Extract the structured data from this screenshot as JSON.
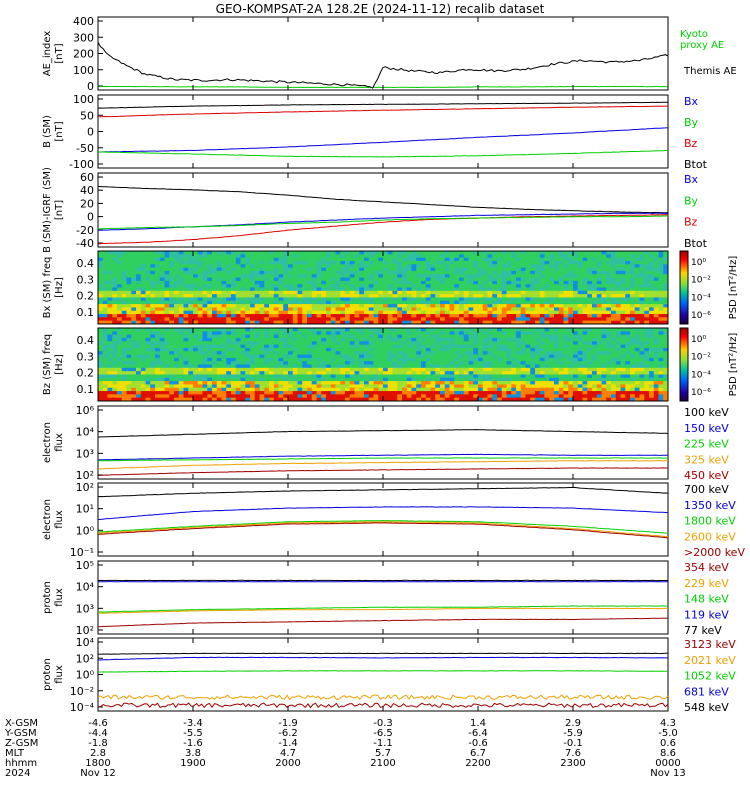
{
  "title": "GEO-KOMPSAT-2A 128.2E (2024-11-12) recalib dataset",
  "colors": {
    "black": "#000000",
    "red": "#e00000",
    "blue": "#0000e0",
    "green": "#00d000",
    "orange": "#f0a000",
    "darkred": "#a00000"
  },
  "chart_data": [
    {
      "type": "line",
      "ylabel": "AE_index [nT]",
      "yticks": [
        "400",
        "300",
        "200",
        "100",
        "0"
      ],
      "ylim": [
        0,
        420
      ],
      "legend": [
        "Kyoto proxy AE",
        "Themis AE"
      ],
      "series": [
        {
          "name": "Kyoto proxy AE",
          "color": "#00d000",
          "x": [
            0,
            0.5,
            1,
            1.5,
            2,
            2.5,
            3,
            3.5,
            4,
            4.5,
            5,
            5.5,
            6
          ],
          "y": [
            20,
            20,
            18,
            18,
            15,
            15,
            15,
            15,
            18,
            18,
            20,
            20,
            20
          ]
        },
        {
          "name": "Themis AE",
          "color": "#000000",
          "x": [
            0,
            0.1,
            0.3,
            0.5,
            0.8,
            1.1,
            1.4,
            1.8,
            2.2,
            2.6,
            2.8,
            2.9,
            3.0,
            3.3,
            3.6,
            3.9,
            4.2,
            4.5,
            4.8,
            5.1,
            5.4,
            5.7,
            6.0
          ],
          "y": [
            270,
            200,
            140,
            90,
            60,
            55,
            60,
            50,
            40,
            30,
            20,
            15,
            130,
            110,
            100,
            120,
            110,
            120,
            150,
            170,
            160,
            170,
            200
          ]
        }
      ]
    },
    {
      "type": "line",
      "ylabel": "B (SM) [nT]",
      "yticks": [
        "100",
        "50",
        "0",
        "-50",
        "-100"
      ],
      "ylim": [
        -110,
        140
      ],
      "legend": [
        "Bx",
        "By",
        "Bz",
        "Btot"
      ],
      "series": [
        {
          "name": "Btot",
          "color": "#000000",
          "x": [
            0,
            1,
            2,
            3,
            4,
            5,
            6
          ],
          "y": [
            95,
            102,
            106,
            108,
            110,
            112,
            115
          ]
        },
        {
          "name": "Bz",
          "color": "#e00000",
          "x": [
            0,
            1,
            2,
            3,
            4,
            5,
            6
          ],
          "y": [
            65,
            75,
            82,
            88,
            93,
            98,
            102
          ]
        },
        {
          "name": "Bx",
          "color": "#0000e0",
          "x": [
            0,
            1,
            2,
            3,
            4,
            5,
            6
          ],
          "y": [
            -55,
            -50,
            -38,
            -22,
            -5,
            10,
            28
          ]
        },
        {
          "name": "By",
          "color": "#00d000",
          "x": [
            0,
            1,
            2,
            3,
            4,
            5,
            6
          ],
          "y": [
            -55,
            -62,
            -70,
            -72,
            -68,
            -60,
            -50
          ]
        }
      ]
    },
    {
      "type": "line",
      "ylabel": "B (SM)-IGRF (SM) [nT]",
      "yticks": [
        "60",
        "40",
        "20",
        "0",
        "-20",
        "-40"
      ],
      "ylim": [
        -45,
        65
      ],
      "legend": [
        "Bx",
        "By",
        "Bz",
        "Btot"
      ],
      "series": [
        {
          "name": "Btot",
          "color": "#000000",
          "x": [
            0,
            0.5,
            1,
            1.5,
            2,
            2.5,
            3,
            3.5,
            4,
            4.5,
            5,
            5.5,
            6
          ],
          "y": [
            45,
            42,
            40,
            37,
            32,
            26,
            22,
            18,
            14,
            11,
            9,
            7,
            6
          ]
        },
        {
          "name": "Bz",
          "color": "#e00000",
          "x": [
            0,
            0.5,
            1,
            1.5,
            2,
            2.5,
            3,
            3.5,
            4,
            4.5,
            5,
            5.5,
            6
          ],
          "y": [
            -40,
            -38,
            -34,
            -28,
            -20,
            -14,
            -8,
            -4,
            -2,
            0,
            1,
            2,
            3
          ]
        },
        {
          "name": "Bx",
          "color": "#0000e0",
          "x": [
            0,
            0.5,
            1,
            1.5,
            2,
            2.5,
            3,
            3.5,
            4,
            4.5,
            5,
            5.5,
            6
          ],
          "y": [
            -20,
            -18,
            -15,
            -12,
            -8,
            -5,
            -2,
            0,
            2,
            3,
            4,
            5,
            5
          ]
        },
        {
          "name": "By",
          "color": "#00d000",
          "x": [
            0,
            0.5,
            1,
            1.5,
            2,
            2.5,
            3,
            3.5,
            4,
            4.5,
            5,
            5.5,
            6
          ],
          "y": [
            -18,
            -16,
            -15,
            -13,
            -10,
            -8,
            -5,
            -3,
            -2,
            -1,
            0,
            0,
            1
          ]
        }
      ]
    },
    {
      "type": "heatmap",
      "ylabel": "Bx (SM) freq [Hz]",
      "yticks": [
        "0.4",
        "0.3",
        "0.2",
        "0.1"
      ],
      "ylim": [
        0.05,
        0.5
      ],
      "colorbar_label": "PSD [nT²/Hz]",
      "colorbar_ticks": [
        "10⁰",
        "10⁻²",
        "10⁻⁴",
        "10⁻⁶"
      ]
    },
    {
      "type": "heatmap",
      "ylabel": "Bz (SM) freq [Hz]",
      "yticks": [
        "0.4",
        "0.3",
        "0.2",
        "0.1"
      ],
      "ylim": [
        0.05,
        0.5
      ],
      "colorbar_label": "PSD [nT²/Hz]",
      "colorbar_ticks": [
        "10⁰",
        "10⁻²",
        "10⁻⁴",
        "10⁻⁶"
      ]
    },
    {
      "type": "line",
      "ylabel": "electron flux",
      "yticks": [
        "10⁶",
        "10⁴",
        "10³",
        "10²"
      ],
      "ylim_log": [
        2,
        6
      ],
      "legend": [
        "100 keV",
        "150 keV",
        "225 keV",
        "325 keV",
        "450 keV"
      ],
      "series": [
        {
          "name": "100 keV",
          "color": "#000000",
          "x": [
            0,
            1,
            2,
            3,
            4,
            5,
            6
          ],
          "y_log": [
            4.3,
            4.45,
            4.6,
            4.65,
            4.7,
            4.6,
            4.5
          ]
        },
        {
          "name": "150 keV",
          "color": "#0000e0",
          "x": [
            0,
            1,
            2,
            3,
            4,
            5,
            6
          ],
          "y_log": [
            3.05,
            3.15,
            3.25,
            3.3,
            3.35,
            3.3,
            3.3
          ]
        },
        {
          "name": "225 keV",
          "color": "#00d000",
          "x": [
            0,
            1,
            2,
            3,
            4,
            5,
            6
          ],
          "y_log": [
            3.0,
            3.05,
            3.1,
            3.15,
            3.15,
            3.15,
            3.15
          ]
        },
        {
          "name": "325 keV",
          "color": "#f0a000",
          "x": [
            0,
            1,
            2,
            3,
            4,
            5,
            6
          ],
          "y_log": [
            2.55,
            2.75,
            2.85,
            2.9,
            2.95,
            3.0,
            3.0
          ]
        },
        {
          "name": "450 keV",
          "color": "#a00000",
          "x": [
            0,
            1,
            2,
            3,
            4,
            5,
            6
          ],
          "y_log": [
            2.2,
            2.35,
            2.45,
            2.5,
            2.55,
            2.6,
            2.6
          ]
        }
      ]
    },
    {
      "type": "line",
      "ylabel": "electron flux",
      "yticks": [
        "10²",
        "10¹",
        "10⁰",
        "10⁻¹"
      ],
      "ylim_log": [
        -1.2,
        2
      ],
      "legend": [
        "700 keV",
        "1350 keV",
        "1800 keV",
        "2600 keV",
        ">2000 keV"
      ],
      "series": [
        {
          "name": "700 keV",
          "color": "#000000",
          "x": [
            0,
            1,
            2,
            3,
            4,
            5,
            6
          ],
          "y_log": [
            1.4,
            1.55,
            1.65,
            1.7,
            1.75,
            1.8,
            1.55
          ]
        },
        {
          "name": "1350 keV",
          "color": "#0000e0",
          "x": [
            0,
            1,
            2,
            3,
            4,
            5,
            6
          ],
          "y_log": [
            0.4,
            0.75,
            0.9,
            0.95,
            0.95,
            0.9,
            0.7
          ]
        },
        {
          "name": "1800 keV",
          "color": "#00d000",
          "x": [
            0,
            1,
            2,
            3,
            4,
            5,
            6
          ],
          "y_log": [
            -0.15,
            0.1,
            0.3,
            0.35,
            0.3,
            0.1,
            -0.2
          ]
        },
        {
          "name": "2600 keV",
          "color": "#f0a000",
          "x": [
            0,
            1,
            2,
            3,
            4,
            5,
            6
          ],
          "y_log": [
            -0.2,
            0.05,
            0.25,
            0.3,
            0.25,
            0.0,
            -0.35
          ]
        },
        {
          "name": ">2000 keV",
          "color": "#a00000",
          "x": [
            0,
            1,
            2,
            3,
            4,
            5,
            6
          ],
          "y_log": [
            -0.25,
            0.0,
            0.2,
            0.25,
            0.2,
            -0.05,
            -0.4
          ]
        }
      ]
    },
    {
      "type": "line",
      "ylabel": "proton flux",
      "yticks": [
        "10⁵",
        "10⁴",
        "10³",
        "10²"
      ],
      "ylim_log": [
        2,
        5
      ],
      "legend": [
        "354 keV",
        "229 keV",
        "148 keV",
        "119 keV",
        "77 keV"
      ],
      "series": [
        {
          "name": "77 keV",
          "color": "#000000",
          "x": [
            0,
            1,
            2,
            3,
            4,
            5,
            6
          ],
          "y_log": [
            4.2,
            4.2,
            4.2,
            4.2,
            4.2,
            4.2,
            4.2
          ]
        },
        {
          "name": "119 keV",
          "color": "#0000e0",
          "x": [
            0,
            1,
            2,
            3,
            4,
            5,
            6
          ],
          "y_log": [
            4.15,
            4.15,
            4.15,
            4.15,
            4.15,
            4.15,
            4.15
          ]
        },
        {
          "name": "148 keV",
          "color": "#00d000",
          "x": [
            0,
            1,
            2,
            3,
            4,
            5,
            6
          ],
          "y_log": [
            2.9,
            3.0,
            3.05,
            3.1,
            3.1,
            3.15,
            3.15
          ]
        },
        {
          "name": "229 keV",
          "color": "#f0a000",
          "x": [
            0,
            1,
            2,
            3,
            4,
            5,
            6
          ],
          "y_log": [
            2.85,
            2.95,
            3.0,
            3.0,
            3.05,
            3.05,
            3.05
          ]
        },
        {
          "name": "354 keV",
          "color": "#a00000",
          "x": [
            0,
            1,
            2,
            3,
            4,
            5,
            6
          ],
          "y_log": [
            2.3,
            2.45,
            2.5,
            2.55,
            2.6,
            2.6,
            2.65
          ]
        }
      ]
    },
    {
      "type": "line",
      "ylabel": "proton flux",
      "yticks": [
        "10⁴",
        "10²",
        "10⁰",
        "10⁻²",
        "10⁻⁴"
      ],
      "ylim_log": [
        -4.5,
        4.5
      ],
      "legend": [
        "3123 keV",
        "2021 keV",
        "1052 keV",
        "681 keV",
        "548 keV"
      ],
      "series": [
        {
          "name": "548 keV",
          "color": "#000000",
          "x": [
            0,
            1,
            2,
            3,
            4,
            5,
            6
          ],
          "y_log": [
            2.5,
            2.6,
            2.6,
            2.6,
            2.6,
            2.6,
            2.6
          ]
        },
        {
          "name": "681 keV",
          "color": "#0000e0",
          "x": [
            0,
            1,
            2,
            3,
            4,
            5,
            6
          ],
          "y_log": [
            1.8,
            2.1,
            2.1,
            2.05,
            2.1,
            2.1,
            2.05
          ]
        },
        {
          "name": "1052 keV",
          "color": "#00d000",
          "x": [
            0,
            1,
            2,
            3,
            4,
            5,
            6
          ],
          "y_log": [
            0.3,
            0.4,
            0.45,
            0.45,
            0.45,
            0.45,
            0.4
          ]
        },
        {
          "name": "2021 keV",
          "color": "#f0a000",
          "x": [
            0,
            1,
            2,
            3,
            4,
            5,
            6
          ],
          "y_log": [
            -2.8,
            -2.8,
            -2.8,
            -2.8,
            -2.8,
            -2.8,
            -2.8
          ]
        },
        {
          "name": "3123 keV",
          "color": "#a00000",
          "x": [
            0,
            1,
            2,
            3,
            4,
            5,
            6
          ],
          "y_log": [
            -3.8,
            -3.8,
            -3.8,
            -3.8,
            -3.8,
            -3.8,
            -3.8
          ]
        }
      ]
    }
  ],
  "time_axis": {
    "row_labels": [
      "X-GSM",
      "Y-GSM",
      "Z-GSM",
      "MLT",
      "hhmm",
      "2024"
    ],
    "columns": [
      [
        "-4.6",
        "-4.4",
        "-1.8",
        "2.8",
        "1800",
        "Nov 12"
      ],
      [
        "-3.4",
        "-5.5",
        "-1.6",
        "3.8",
        "1900",
        ""
      ],
      [
        "-1.9",
        "-6.2",
        "-1.4",
        "4.7",
        "2000",
        ""
      ],
      [
        "-0.3",
        "-6.5",
        "-1.1",
        "5.7",
        "2100",
        ""
      ],
      [
        "1.4",
        "-6.4",
        "-0.6",
        "6.7",
        "2200",
        ""
      ],
      [
        "2.9",
        "-5.9",
        "-0.1",
        "7.6",
        "2300",
        ""
      ],
      [
        "4.3",
        "-5.0",
        "0.6",
        "8.6",
        "0000",
        "Nov 13"
      ]
    ]
  }
}
